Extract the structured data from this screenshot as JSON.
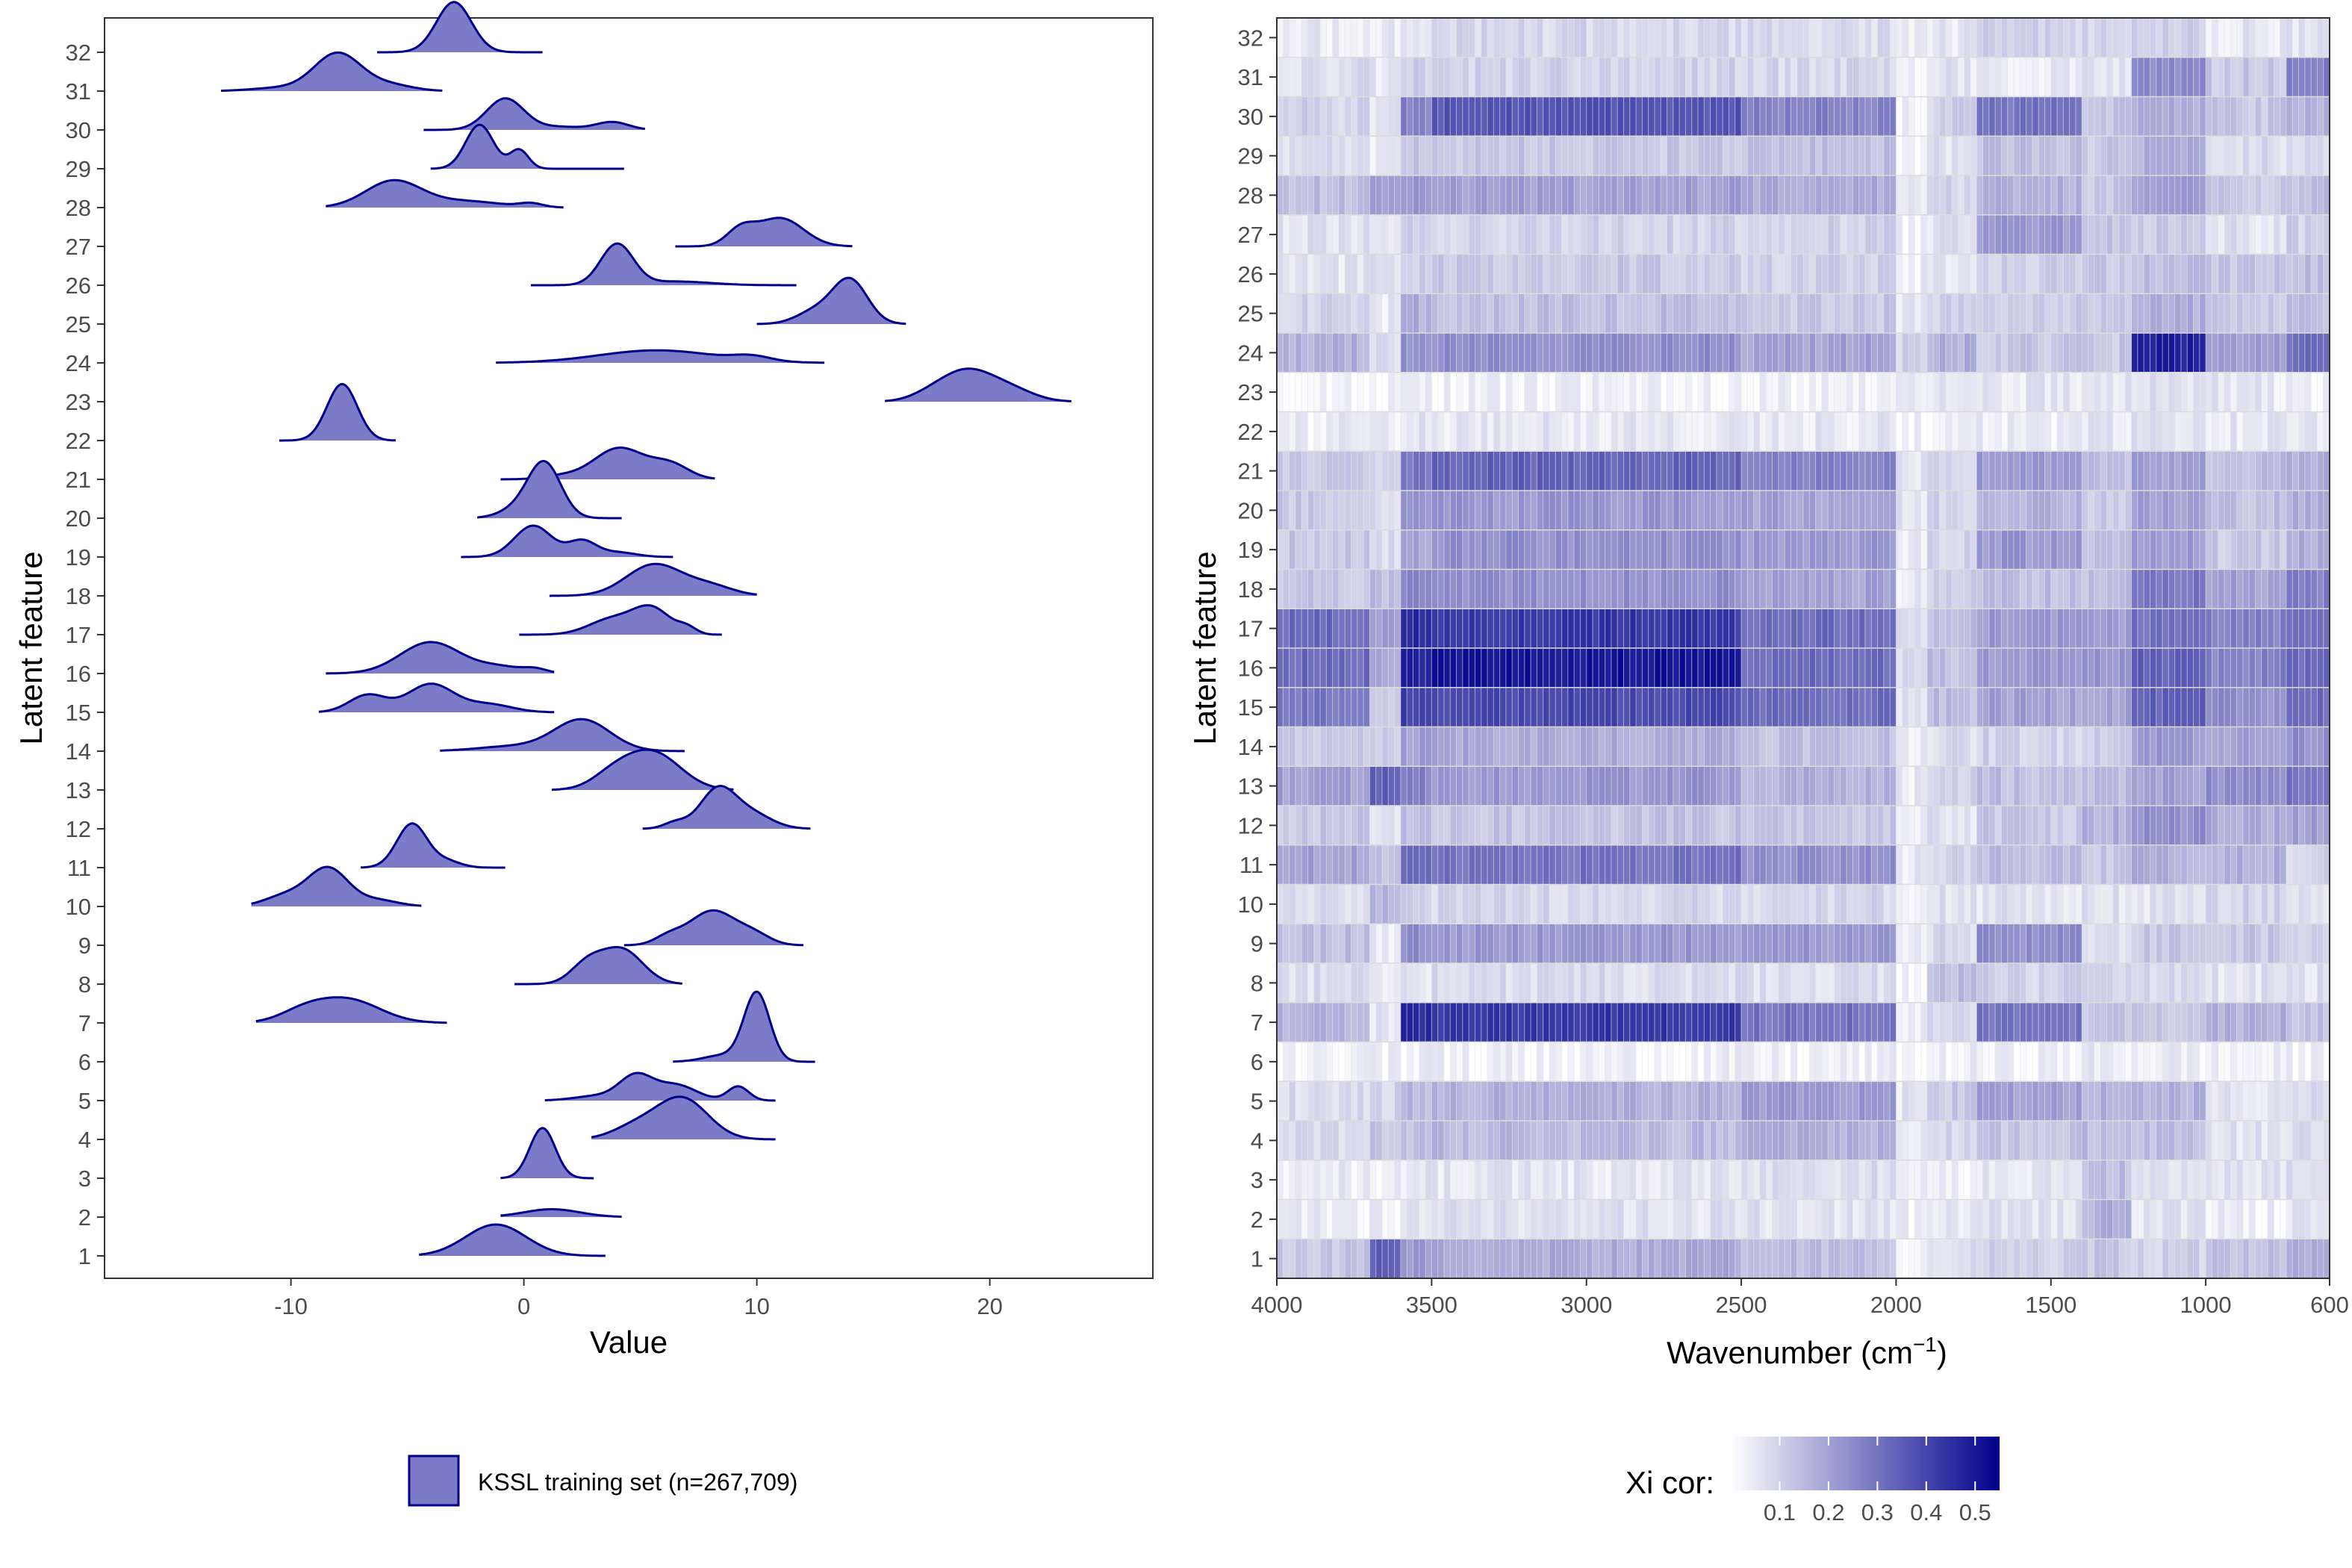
{
  "chart_data": [
    {
      "type": "ridgeline",
      "xlabel": "Value",
      "ylabel": "Latent feature",
      "xlim": [
        -18,
        27
      ],
      "x_ticks": [
        -10,
        0,
        10,
        20
      ],
      "x_tick_labels": [
        "-10",
        "0",
        "10",
        "20"
      ],
      "categories": [
        "1",
        "2",
        "3",
        "4",
        "5",
        "6",
        "7",
        "8",
        "9",
        "10",
        "11",
        "12",
        "13",
        "14",
        "15",
        "16",
        "17",
        "18",
        "19",
        "20",
        "21",
        "22",
        "23",
        "24",
        "25",
        "26",
        "27",
        "28",
        "29",
        "30",
        "31",
        "32"
      ],
      "series": [
        {
          "feature": 1,
          "min": -4.5,
          "max": 3.5,
          "peaks": [
            [
              -1.2,
              1.0,
              1.3
            ]
          ]
        },
        {
          "feature": 2,
          "min": -1.0,
          "max": 4.2,
          "peaks": [
            [
              1.2,
              0.25,
              1.2
            ]
          ]
        },
        {
          "feature": 3,
          "min": -1.0,
          "max": 3.0,
          "peaks": [
            [
              0.8,
              1.6,
              0.55
            ]
          ]
        },
        {
          "feature": 4,
          "min": 2.9,
          "max": 10.8,
          "peaks": [
            [
              6.8,
              1.3,
              1.1
            ],
            [
              4.8,
              0.4,
              1.0
            ]
          ]
        },
        {
          "feature": 5,
          "min": 0.9,
          "max": 10.8,
          "peaks": [
            [
              4.8,
              0.75,
              0.7
            ],
            [
              6.5,
              0.5,
              0.9
            ],
            [
              9.2,
              0.45,
              0.45
            ],
            [
              3.2,
              0.15,
              1.0
            ]
          ]
        },
        {
          "feature": 6,
          "min": 6.4,
          "max": 12.5,
          "peaks": [
            [
              10.0,
              2.2,
              0.55
            ],
            [
              8.5,
              0.2,
              0.8
            ]
          ]
        },
        {
          "feature": 7,
          "min": -11.5,
          "max": -3.3,
          "peaks": [
            [
              -7.6,
              0.75,
              1.4
            ],
            [
              -9.5,
              0.3,
              1.0
            ]
          ]
        },
        {
          "feature": 8,
          "min": -0.4,
          "max": 6.8,
          "peaks": [
            [
              4.2,
              1.1,
              0.9
            ],
            [
              2.7,
              0.6,
              0.7
            ]
          ]
        },
        {
          "feature": 9,
          "min": 4.3,
          "max": 12.0,
          "peaks": [
            [
              8.1,
              1.1,
              1.0
            ],
            [
              6.2,
              0.25,
              0.6
            ],
            [
              9.9,
              0.3,
              0.7
            ]
          ]
        },
        {
          "feature": 10,
          "min": -11.7,
          "max": -4.4,
          "peaks": [
            [
              -8.4,
              1.2,
              0.85
            ],
            [
              -10.2,
              0.35,
              0.9
            ],
            [
              -6.3,
              0.2,
              0.9
            ]
          ]
        },
        {
          "feature": 11,
          "min": -7.0,
          "max": -0.8,
          "peaks": [
            [
              -4.8,
              1.4,
              0.65
            ],
            [
              -3.3,
              0.2,
              0.6
            ]
          ]
        },
        {
          "feature": 12,
          "min": 5.1,
          "max": 12.3,
          "peaks": [
            [
              8.3,
              1.2,
              0.75
            ],
            [
              9.7,
              0.5,
              0.9
            ],
            [
              6.5,
              0.2,
              0.5
            ]
          ]
        },
        {
          "feature": 13,
          "min": 1.2,
          "max": 9.0,
          "peaks": [
            [
              5.5,
              1.2,
              1.2
            ],
            [
              3.8,
              0.4,
              0.9
            ]
          ]
        },
        {
          "feature": 14,
          "min": -3.6,
          "max": 6.9,
          "peaks": [
            [
              2.5,
              1.0,
              1.2
            ],
            [
              -0.5,
              0.15,
              1.5
            ]
          ]
        },
        {
          "feature": 15,
          "min": -8.8,
          "max": 1.3,
          "peaks": [
            [
              -4.0,
              0.9,
              1.0
            ],
            [
              -6.7,
              0.55,
              0.8
            ],
            [
              -1.5,
              0.25,
              1.0
            ]
          ]
        },
        {
          "feature": 16,
          "min": -8.5,
          "max": 1.3,
          "peaks": [
            [
              -4.0,
              1.0,
              1.3
            ],
            [
              -1.0,
              0.2,
              1.0
            ],
            [
              0.5,
              0.12,
              0.5
            ]
          ]
        },
        {
          "feature": 17,
          "min": -0.2,
          "max": 8.5,
          "peaks": [
            [
              5.5,
              0.8,
              0.8
            ],
            [
              3.8,
              0.5,
              1.0
            ],
            [
              7.0,
              0.2,
              0.4
            ]
          ]
        },
        {
          "feature": 18,
          "min": 1.1,
          "max": 10.0,
          "peaks": [
            [
              5.6,
              1.0,
              1.2
            ],
            [
              8.0,
              0.3,
              1.0
            ]
          ]
        },
        {
          "feature": 19,
          "min": -2.7,
          "max": 6.4,
          "peaks": [
            [
              0.4,
              1.0,
              0.8
            ],
            [
              2.5,
              0.5,
              0.6
            ],
            [
              4.0,
              0.15,
              0.8
            ]
          ]
        },
        {
          "feature": 20,
          "min": -2.0,
          "max": 4.2,
          "peaks": [
            [
              0.9,
              1.7,
              0.7
            ],
            [
              -0.2,
              0.3,
              0.8
            ]
          ]
        },
        {
          "feature": 21,
          "min": -1.0,
          "max": 8.2,
          "peaks": [
            [
              4.1,
              1.0,
              1.1
            ],
            [
              6.3,
              0.45,
              0.8
            ],
            [
              1.5,
              0.1,
              0.8
            ]
          ]
        },
        {
          "feature": 22,
          "min": -10.5,
          "max": -5.5,
          "peaks": [
            [
              -7.8,
              1.8,
              0.65
            ]
          ]
        },
        {
          "feature": 23,
          "min": 15.5,
          "max": 23.5,
          "peaks": [
            [
              19.0,
              1.0,
              1.2
            ],
            [
              21.0,
              0.3,
              1.0
            ],
            [
              17.3,
              0.1,
              0.8
            ]
          ]
        },
        {
          "feature": 24,
          "min": -1.2,
          "max": 12.9,
          "peaks": [
            [
              5.7,
              0.4,
              2.5
            ],
            [
              9.8,
              0.15,
              0.8
            ]
          ]
        },
        {
          "feature": 25,
          "min": 10.0,
          "max": 16.4,
          "peaks": [
            [
              14.0,
              1.4,
              0.75
            ],
            [
              12.5,
              0.4,
              0.8
            ]
          ]
        },
        {
          "feature": 26,
          "min": 0.3,
          "max": 11.7,
          "peaks": [
            [
              4.0,
              1.3,
              0.7
            ],
            [
              6.5,
              0.12,
              1.5
            ]
          ]
        },
        {
          "feature": 27,
          "min": 6.5,
          "max": 14.1,
          "peaks": [
            [
              11.0,
              0.9,
              1.0
            ],
            [
              9.3,
              0.5,
              0.6
            ]
          ]
        },
        {
          "feature": 28,
          "min": -8.5,
          "max": 1.7,
          "peaks": [
            [
              -5.6,
              0.85,
              1.2
            ],
            [
              -2.5,
              0.2,
              1.5
            ],
            [
              0.3,
              0.12,
              0.5
            ]
          ]
        },
        {
          "feature": 29,
          "min": -4.0,
          "max": 4.3,
          "peaks": [
            [
              -1.9,
              1.4,
              0.6
            ],
            [
              -0.2,
              0.6,
              0.4
            ]
          ]
        },
        {
          "feature": 30,
          "min": -4.3,
          "max": 5.2,
          "peaks": [
            [
              -0.8,
              1.0,
              0.8
            ],
            [
              3.8,
              0.25,
              0.7
            ],
            [
              1.5,
              0.1,
              1.0
            ]
          ]
        },
        {
          "feature": 31,
          "min": -13.0,
          "max": -3.5,
          "peaks": [
            [
              -8.0,
              1.2,
              1.0
            ],
            [
              -5.8,
              0.2,
              1.0
            ],
            [
              -10.5,
              0.1,
              1.2
            ]
          ]
        },
        {
          "feature": 32,
          "min": -6.3,
          "max": 0.8,
          "peaks": [
            [
              -3.0,
              1.6,
              0.75
            ]
          ]
        }
      ],
      "legend": {
        "label": "KSSL training set (n=267,709)",
        "position": "bottom"
      },
      "fill_color": "#7B7BC7",
      "line_color": "#00008B"
    },
    {
      "type": "heatmap",
      "xlabel": "Wavenumber (cm",
      "xlabel_superscript": "−1",
      "xlabel_suffix": ")",
      "ylabel": "Latent feature",
      "xlim": [
        4000,
        600
      ],
      "x_ticks": [
        4000,
        3500,
        3000,
        2500,
        2000,
        1500,
        1000,
        600
      ],
      "x_tick_labels": [
        "4000",
        "3500",
        "3000",
        "2500",
        "2000",
        "1500",
        "1000",
        "600"
      ],
      "categories": [
        "1",
        "2",
        "3",
        "4",
        "5",
        "6",
        "7",
        "8",
        "9",
        "10",
        "11",
        "12",
        "13",
        "14",
        "15",
        "16",
        "17",
        "18",
        "19",
        "20",
        "21",
        "22",
        "23",
        "24",
        "25",
        "26",
        "27",
        "28",
        "29",
        "30",
        "31",
        "32"
      ],
      "bin_width_cm": 20,
      "region_bounds": [
        4000,
        3700,
        3600,
        3500,
        2500,
        2000,
        1900,
        1750,
        1400,
        1250,
        1000,
        750,
        600
      ],
      "profile_note": "xi correlation per latent feature across the spectral regions defined by region_bounds (one value per region)",
      "profiles": {
        "1": [
          0.1,
          0.32,
          0.2,
          0.16,
          0.12,
          0.02,
          0.05,
          0.08,
          0.1,
          0.08,
          0.12,
          0.15
        ],
        "2": [
          0.03,
          0.03,
          0.04,
          0.05,
          0.05,
          0.02,
          0.03,
          0.05,
          0.15,
          0.05,
          0.03,
          0.04
        ],
        "3": [
          0.03,
          0.03,
          0.04,
          0.04,
          0.06,
          0.02,
          0.03,
          0.05,
          0.12,
          0.06,
          0.05,
          0.06
        ],
        "4": [
          0.06,
          0.1,
          0.12,
          0.13,
          0.15,
          0.04,
          0.07,
          0.1,
          0.13,
          0.12,
          0.05,
          0.06
        ],
        "5": [
          0.06,
          0.08,
          0.13,
          0.15,
          0.2,
          0.04,
          0.1,
          0.18,
          0.15,
          0.15,
          0.05,
          0.06
        ],
        "6": [
          0.02,
          0.02,
          0.02,
          0.02,
          0.02,
          0.01,
          0.02,
          0.02,
          0.03,
          0.03,
          0.02,
          0.02
        ],
        "7": [
          0.14,
          0.04,
          0.45,
          0.42,
          0.28,
          0.02,
          0.08,
          0.28,
          0.1,
          0.1,
          0.15,
          0.12
        ],
        "8": [
          0.06,
          0.04,
          0.05,
          0.06,
          0.06,
          0.02,
          0.12,
          0.08,
          0.08,
          0.06,
          0.05,
          0.05
        ],
        "9": [
          0.12,
          0.04,
          0.22,
          0.2,
          0.2,
          0.03,
          0.07,
          0.22,
          0.06,
          0.1,
          0.1,
          0.08
        ],
        "10": [
          0.06,
          0.15,
          0.08,
          0.07,
          0.07,
          0.03,
          0.05,
          0.05,
          0.05,
          0.05,
          0.08,
          0.05
        ],
        "11": [
          0.18,
          0.1,
          0.3,
          0.28,
          0.22,
          0.04,
          0.08,
          0.12,
          0.1,
          0.15,
          0.15,
          0.08
        ],
        "12": [
          0.1,
          0.06,
          0.12,
          0.11,
          0.1,
          0.03,
          0.05,
          0.1,
          0.15,
          0.22,
          0.16,
          0.18
        ],
        "13": [
          0.18,
          0.32,
          0.25,
          0.2,
          0.15,
          0.03,
          0.08,
          0.12,
          0.12,
          0.18,
          0.22,
          0.28
        ],
        "14": [
          0.1,
          0.08,
          0.18,
          0.16,
          0.12,
          0.04,
          0.06,
          0.08,
          0.1,
          0.2,
          0.18,
          0.22
        ],
        "15": [
          0.28,
          0.1,
          0.4,
          0.38,
          0.3,
          0.05,
          0.12,
          0.18,
          0.18,
          0.32,
          0.22,
          0.3
        ],
        "16": [
          0.3,
          0.15,
          0.48,
          0.5,
          0.3,
          0.06,
          0.12,
          0.2,
          0.2,
          0.32,
          0.25,
          0.3
        ],
        "17": [
          0.3,
          0.2,
          0.45,
          0.42,
          0.3,
          0.05,
          0.12,
          0.2,
          0.18,
          0.28,
          0.25,
          0.28
        ],
        "18": [
          0.1,
          0.12,
          0.25,
          0.22,
          0.18,
          0.04,
          0.08,
          0.12,
          0.12,
          0.28,
          0.18,
          0.25
        ],
        "19": [
          0.1,
          0.06,
          0.18,
          0.22,
          0.2,
          0.04,
          0.08,
          0.2,
          0.12,
          0.2,
          0.1,
          0.15
        ],
        "20": [
          0.1,
          0.06,
          0.2,
          0.2,
          0.18,
          0.04,
          0.08,
          0.15,
          0.1,
          0.18,
          0.12,
          0.15
        ],
        "21": [
          0.1,
          0.08,
          0.28,
          0.32,
          0.25,
          0.04,
          0.08,
          0.2,
          0.12,
          0.18,
          0.12,
          0.15
        ],
        "22": [
          0.03,
          0.03,
          0.04,
          0.04,
          0.04,
          0.02,
          0.03,
          0.03,
          0.04,
          0.05,
          0.04,
          0.03
        ],
        "23": [
          0.02,
          0.02,
          0.02,
          0.02,
          0.02,
          0.03,
          0.05,
          0.04,
          0.05,
          0.05,
          0.04,
          0.03
        ],
        "24": [
          0.15,
          0.06,
          0.22,
          0.22,
          0.18,
          0.08,
          0.15,
          0.1,
          0.1,
          0.48,
          0.18,
          0.3
        ],
        "25": [
          0.08,
          0.04,
          0.15,
          0.12,
          0.1,
          0.03,
          0.08,
          0.1,
          0.1,
          0.15,
          0.1,
          0.12
        ],
        "26": [
          0.04,
          0.06,
          0.1,
          0.1,
          0.08,
          0.03,
          0.05,
          0.08,
          0.1,
          0.12,
          0.1,
          0.12
        ],
        "27": [
          0.05,
          0.04,
          0.08,
          0.08,
          0.08,
          0.02,
          0.05,
          0.2,
          0.1,
          0.1,
          0.05,
          0.08
        ],
        "28": [
          0.12,
          0.18,
          0.2,
          0.18,
          0.16,
          0.03,
          0.08,
          0.15,
          0.1,
          0.18,
          0.1,
          0.12
        ],
        "29": [
          0.06,
          0.04,
          0.1,
          0.1,
          0.12,
          0.02,
          0.05,
          0.12,
          0.1,
          0.15,
          0.06,
          0.08
        ],
        "30": [
          0.08,
          0.05,
          0.25,
          0.35,
          0.25,
          0.03,
          0.08,
          0.28,
          0.1,
          0.15,
          0.1,
          0.15
        ],
        "31": [
          0.06,
          0.04,
          0.08,
          0.08,
          0.07,
          0.02,
          0.05,
          0.03,
          0.05,
          0.22,
          0.1,
          0.25
        ],
        "32": [
          0.04,
          0.04,
          0.06,
          0.07,
          0.06,
          0.02,
          0.04,
          0.08,
          0.08,
          0.08,
          0.04,
          0.05
        ]
      },
      "legend": {
        "title": "Xi cor:",
        "position": "bottom",
        "tick_values": [
          0.1,
          0.2,
          0.3,
          0.4,
          0.5
        ],
        "tick_labels": [
          "0.1",
          "0.2",
          "0.3",
          "0.4",
          "0.5"
        ],
        "range": [
          0,
          0.55
        ]
      },
      "color_low": "#FFFFFF",
      "color_high": "#00008B"
    }
  ]
}
